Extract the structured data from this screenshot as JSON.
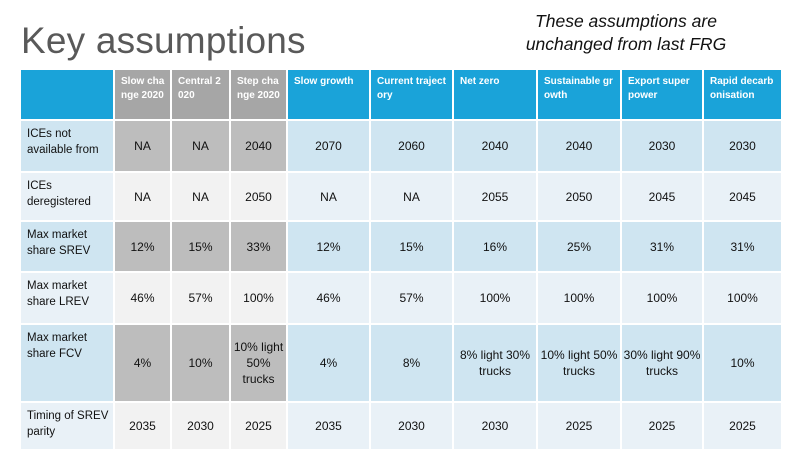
{
  "slide": {
    "title": "Key assumptions",
    "note_line1": "These assumptions are",
    "note_line2": "unchanged from last FRG"
  },
  "table": {
    "headers": [
      "",
      "Slow change 2020",
      "Central 2020",
      "Step change 2020",
      "Slow growth",
      "Current trajectory",
      "Net zero",
      "Sustainable growth",
      "Export super power",
      "Rapid decarbonisation"
    ],
    "rows": [
      {
        "label": "ICEs not available from",
        "values": [
          "NA",
          "NA",
          "2040",
          "2070",
          "2060",
          "2040",
          "2040",
          "2030",
          "2030"
        ]
      },
      {
        "label": "ICEs deregistered",
        "values": [
          "NA",
          "NA",
          "2050",
          "NA",
          "NA",
          "2055",
          "2050",
          "2045",
          "2045"
        ]
      },
      {
        "label": "Max market share SREV",
        "values": [
          "12%",
          "15%",
          "33%",
          "12%",
          "15%",
          "16%",
          "25%",
          "31%",
          "31%"
        ]
      },
      {
        "label": "Max market share LREV",
        "values": [
          "46%",
          "57%",
          "100%",
          "46%",
          "57%",
          "100%",
          "100%",
          "100%",
          "100%"
        ]
      },
      {
        "label": "Max market share FCV",
        "values": [
          "4%",
          "10%",
          "10% light 50% trucks",
          "4%",
          "8%",
          "8% light 30% trucks",
          "10% light 50% trucks",
          "30% light 90% trucks",
          "10%"
        ]
      },
      {
        "label": "Timing of SREV parity",
        "values": [
          "2035",
          "2030",
          "2025",
          "2035",
          "2030",
          "2030",
          "2025",
          "2025",
          "2025"
        ]
      }
    ]
  },
  "colors": {
    "header_blue": "#1aa3d9",
    "header_grey": "#a6a6a6",
    "row_blue_dark": "#cfe5f1",
    "row_blue_light": "#e9f1f7",
    "row_grey_dark": "#bdbdbd",
    "row_grey_light": "#f2f2f2"
  }
}
